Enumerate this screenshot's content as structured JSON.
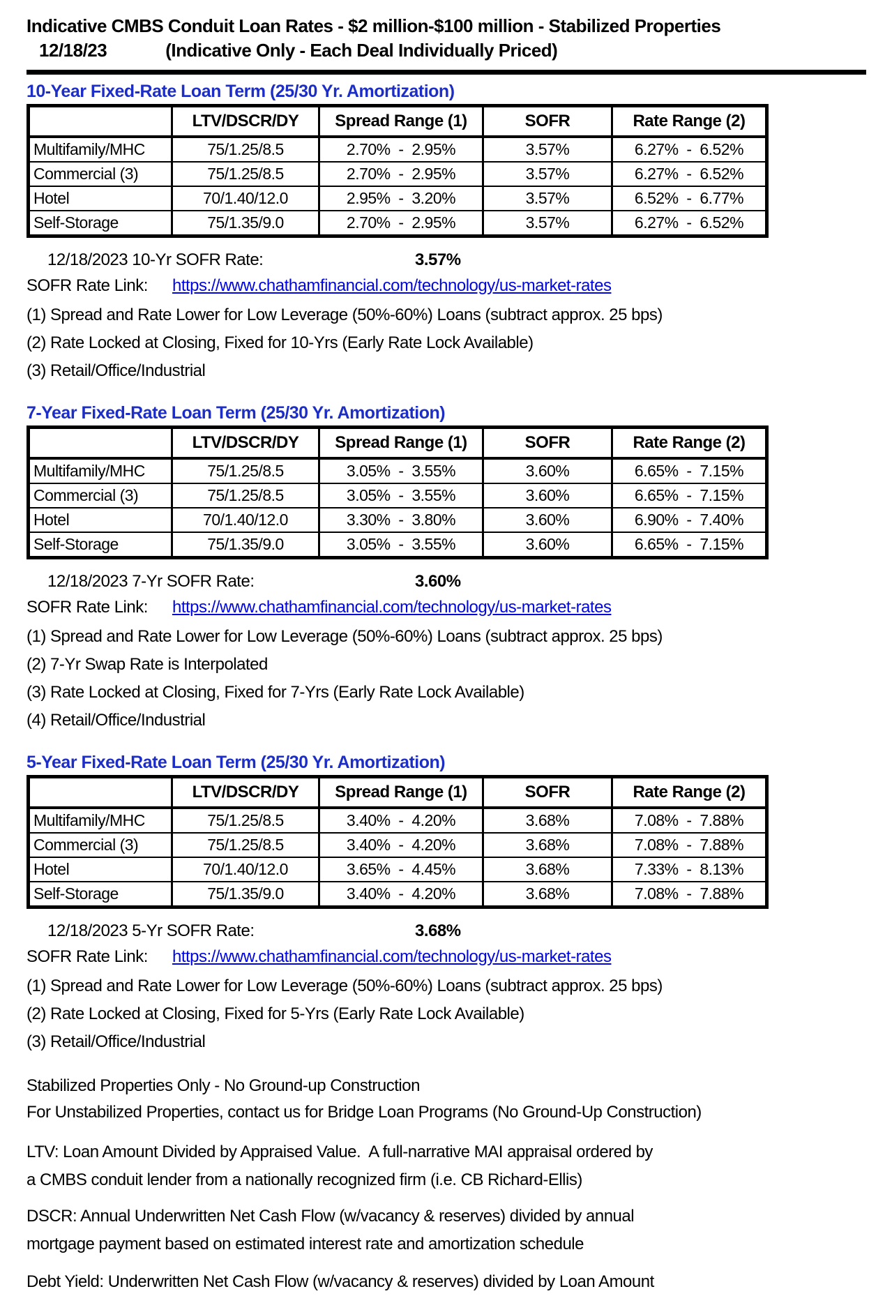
{
  "page": {
    "title": "Indicative CMBS Conduit Loan Rates - $2 million-$100 million - Stabilized Properties",
    "title_date": "12/18/23",
    "title_sub": "(Indicative Only - Each Deal Individually Priced)"
  },
  "colors": {
    "heading_blue": "#1c2ec6",
    "link_blue": "#0006dd",
    "border_black": "#000000"
  },
  "table_headers": [
    "",
    "LTV/DSCR/DY",
    "Spread Range (1)",
    "SOFR",
    "Rate Range (2)"
  ],
  "sections": [
    {
      "heading": "10-Year Fixed-Rate Loan Term (25/30 Yr. Amortization)",
      "rows": [
        [
          "Multifamily/MHC",
          "75/1.25/8.5",
          "2.70%  -  2.95%",
          "3.57%",
          "6.27%  -  6.52%"
        ],
        [
          "Commercial (3)",
          "75/1.25/8.5",
          "2.70%  -  2.95%",
          "3.57%",
          "6.27%  -  6.52%"
        ],
        [
          "Hotel",
          "70/1.40/12.0",
          "2.95%  -  3.20%",
          "3.57%",
          "6.52%  -  6.77%"
        ],
        [
          "Self-Storage",
          "75/1.35/9.0",
          "2.70%  -  2.95%",
          "3.57%",
          "6.27%  -  6.52%"
        ]
      ],
      "sofr_label": "12/18/2023 10-Yr SOFR Rate:",
      "sofr_value": "3.57%",
      "link_label": "SOFR Rate Link:",
      "link_url": "https://www.chathamfinancial.com/technology/us-market-rates",
      "notes": [
        "(1) Spread and Rate Lower for Low Leverage (50%-60%) Loans (subtract approx. 25 bps)",
        "(2) Rate Locked at Closing, Fixed for 10-Yrs (Early Rate Lock Available)",
        "(3) Retail/Office/Industrial"
      ]
    },
    {
      "heading": "7-Year Fixed-Rate Loan Term (25/30 Yr. Amortization)",
      "rows": [
        [
          "Multifamily/MHC",
          "75/1.25/8.5",
          "3.05%  -  3.55%",
          "3.60%",
          "6.65%  -  7.15%"
        ],
        [
          "Commercial (3)",
          "75/1.25/8.5",
          "3.05%  -  3.55%",
          "3.60%",
          "6.65%  -  7.15%"
        ],
        [
          "Hotel",
          "70/1.40/12.0",
          "3.30%  -  3.80%",
          "3.60%",
          "6.90%  -  7.40%"
        ],
        [
          "Self-Storage",
          "75/1.35/9.0",
          "3.05%  -  3.55%",
          "3.60%",
          "6.65%  -  7.15%"
        ]
      ],
      "sofr_label": "12/18/2023 7-Yr SOFR Rate:",
      "sofr_value": "3.60%",
      "link_label": "SOFR Rate Link:",
      "link_url": "https://www.chathamfinancial.com/technology/us-market-rates",
      "notes": [
        "(1) Spread and Rate Lower for Low Leverage (50%-60%) Loans (subtract approx. 25 bps)",
        "(2) 7-Yr Swap Rate is Interpolated",
        "(3) Rate Locked at Closing, Fixed for 7-Yrs (Early Rate Lock Available)",
        "(4) Retail/Office/Industrial"
      ]
    },
    {
      "heading": "5-Year Fixed-Rate Loan Term (25/30 Yr. Amortization)",
      "rows": [
        [
          "Multifamily/MHC",
          "75/1.25/8.5",
          "3.40%  -  4.20%",
          "3.68%",
          "7.08%  -  7.88%"
        ],
        [
          "Commercial (3)",
          "75/1.25/8.5",
          "3.40%  -  4.20%",
          "3.68%",
          "7.08%  -  7.88%"
        ],
        [
          "Hotel",
          "70/1.40/12.0",
          "3.65%  -  4.45%",
          "3.68%",
          "7.33%  -  8.13%"
        ],
        [
          "Self-Storage",
          "75/1.35/9.0",
          "3.40%  -  4.20%",
          "3.68%",
          "7.08%  -  7.88%"
        ]
      ],
      "sofr_label": "12/18/2023 5-Yr SOFR Rate:",
      "sofr_value": "3.68%",
      "link_label": "SOFR Rate Link:",
      "link_url": "https://www.chathamfinancial.com/technology/us-market-rates",
      "notes": [
        "(1) Spread and Rate Lower for Low Leverage (50%-60%) Loans (subtract approx. 25 bps)",
        "(2) Rate Locked at Closing, Fixed for 5-Yrs (Early Rate Lock Available)",
        "(3) Retail/Office/Industrial"
      ]
    }
  ],
  "footer": {
    "paragraphs": [
      [
        "Stabilized Properties Only - No Ground-up Construction",
        "For Unstabilized Properties, contact us for Bridge Loan Programs (No Ground-Up Construction)"
      ],
      [
        "LTV: Loan Amount Divided by Appraised Value.  A full-narrative MAI appraisal ordered by",
        "a CMBS conduit lender from a nationally recognized firm (i.e. CB Richard-Ellis)"
      ],
      [
        "DSCR: Annual Underwritten Net Cash Flow (w/vacancy & reserves) divided by annual",
        "mortgage payment based on estimated interest rate and amortization schedule"
      ],
      [
        "Debt Yield: Underwritten Net Cash Flow (w/vacancy & reserves) divided by Loan Amount"
      ]
    ]
  }
}
